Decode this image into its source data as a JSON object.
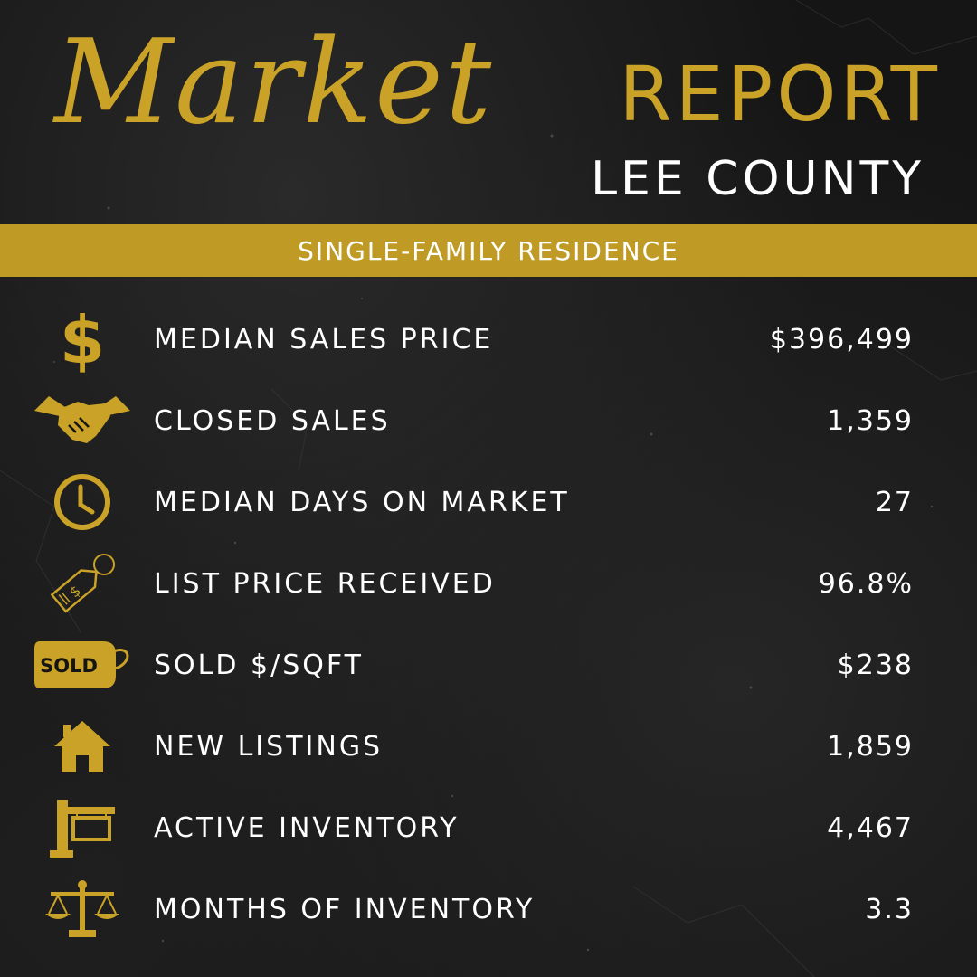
{
  "header": {
    "script_word": "Market",
    "report_word": "REPORT",
    "county": "LEE COUNTY"
  },
  "banner": {
    "label": "SINGLE-FAMILY RESIDENCE"
  },
  "colors": {
    "gold": "#bf9b26",
    "background": "#151515",
    "text": "#ffffff"
  },
  "stats": [
    {
      "icon": "dollar-icon",
      "label": "MEDIAN SALES PRICE",
      "value": "$396,499"
    },
    {
      "icon": "handshake-icon",
      "label": "CLOSED SALES",
      "value": "1,359"
    },
    {
      "icon": "clock-icon",
      "label": "MEDIAN DAYS ON MARKET",
      "value": "27"
    },
    {
      "icon": "price-tag-icon",
      "label": "LIST PRICE RECEIVED",
      "value": "96.8%"
    },
    {
      "icon": "sold-tag-icon",
      "label": "SOLD $/SQFT",
      "value": "$238",
      "icon_text": "SOLD"
    },
    {
      "icon": "house-icon",
      "label": "NEW LISTINGS",
      "value": "1,859"
    },
    {
      "icon": "sign-post-icon",
      "label": "ACTIVE INVENTORY",
      "value": "4,467"
    },
    {
      "icon": "scales-icon",
      "label": "MONTHS OF INVENTORY",
      "value": "3.3"
    }
  ]
}
